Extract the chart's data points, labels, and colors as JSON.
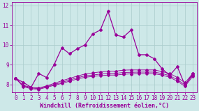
{
  "xlabel": "Windchill (Refroidissement éolien,°C)",
  "background_color": "#cde8e8",
  "grid_color": "#aacccc",
  "line_color": "#990099",
  "x_values": [
    0,
    1,
    2,
    3,
    4,
    5,
    6,
    7,
    8,
    9,
    10,
    11,
    12,
    13,
    14,
    15,
    16,
    17,
    18,
    19,
    20,
    21,
    22,
    23
  ],
  "series": [
    [
      8.3,
      8.1,
      7.85,
      8.55,
      8.35,
      9.0,
      9.85,
      9.55,
      9.8,
      10.0,
      10.55,
      10.75,
      11.7,
      10.5,
      10.4,
      10.75,
      9.5,
      9.5,
      9.3,
      8.8,
      8.45,
      8.9,
      7.95,
      8.55
    ],
    [
      8.3,
      7.95,
      7.85,
      7.82,
      7.92,
      8.05,
      8.18,
      8.3,
      8.42,
      8.52,
      8.58,
      8.63,
      8.67,
      8.67,
      8.72,
      8.73,
      8.73,
      8.73,
      8.73,
      8.65,
      8.55,
      8.35,
      8.08,
      8.55
    ],
    [
      8.3,
      7.92,
      7.82,
      7.78,
      7.88,
      7.99,
      8.1,
      8.22,
      8.33,
      8.43,
      8.47,
      8.52,
      8.56,
      8.56,
      8.6,
      8.61,
      8.62,
      8.62,
      8.62,
      8.55,
      8.44,
      8.24,
      7.97,
      8.47
    ],
    [
      8.3,
      7.88,
      7.78,
      7.75,
      7.85,
      7.95,
      8.05,
      8.16,
      8.27,
      8.36,
      8.4,
      8.44,
      8.47,
      8.47,
      8.51,
      8.53,
      8.54,
      8.54,
      8.54,
      8.47,
      8.36,
      8.16,
      7.9,
      8.4
    ]
  ],
  "ylim": [
    7.6,
    12.15
  ],
  "xlim": [
    -0.5,
    23.5
  ],
  "yticks": [
    8,
    9,
    10,
    11,
    12
  ],
  "xticks": [
    0,
    1,
    2,
    3,
    4,
    5,
    6,
    7,
    8,
    9,
    10,
    11,
    12,
    13,
    14,
    15,
    16,
    17,
    18,
    19,
    20,
    21,
    22,
    23
  ],
  "tick_fontsize": 5.5,
  "xlabel_fontsize": 6.0,
  "markersize": 2.0
}
